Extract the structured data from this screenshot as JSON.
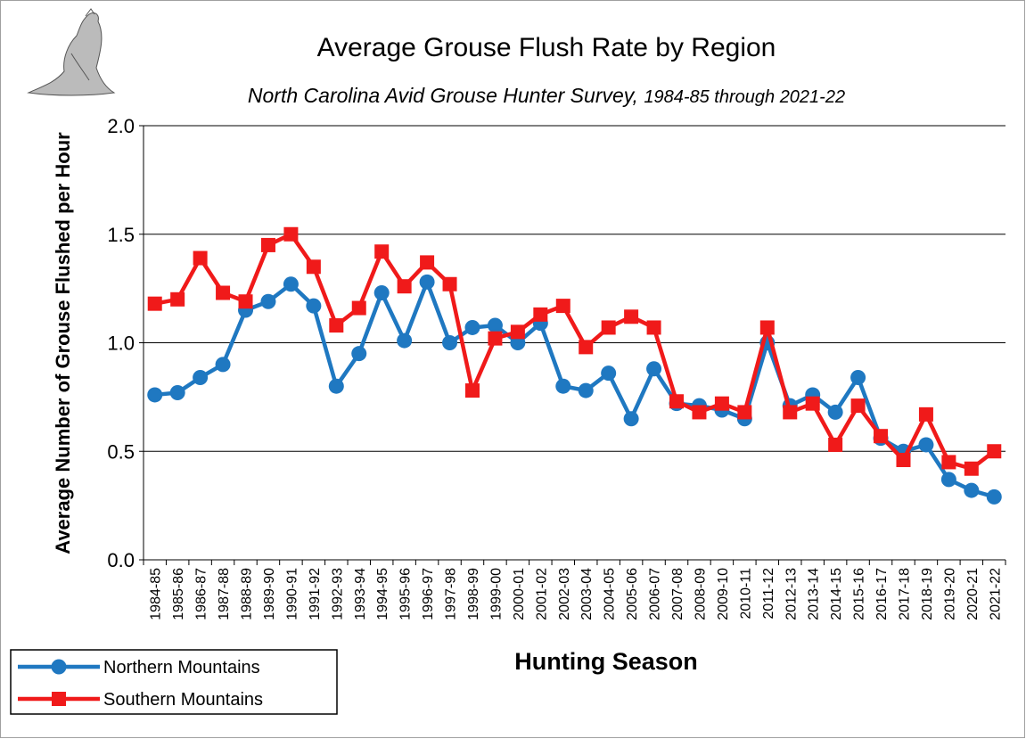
{
  "chart_data": {
    "type": "line",
    "title": "Average Grouse Flush Rate by Region",
    "subtitle": [
      "North Carolina Avid Grouse Hunter Survey,",
      "1984-85 through 2021-22"
    ],
    "x_label": "Hunting Season",
    "y_label": "Average Number of Grouse Flushed per Hour",
    "categories": [
      "1984-85",
      "1985-86",
      "1986-87",
      "1987-88",
      "1988-89",
      "1989-90",
      "1990-91",
      "1991-92",
      "1992-93",
      "1993-94",
      "1994-95",
      "1995-96",
      "1996-97",
      "1997-98",
      "1998-99",
      "1999-00",
      "2000-01",
      "2001-02",
      "2002-03",
      "2003-04",
      "2004-05",
      "2005-06",
      "2006-07",
      "2007-08",
      "2008-09",
      "2009-10",
      "2010-11",
      "2011-12",
      "2012-13",
      "2013-14",
      "2014-15",
      "2015-16",
      "2016-17",
      "2017-18",
      "2018-19",
      "2019-20",
      "2020-21",
      "2021-22"
    ],
    "series": [
      {
        "name": "Northern Mountains",
        "color": "#1f78c1",
        "marker": "circle",
        "values": [
          0.76,
          0.77,
          0.84,
          0.9,
          1.15,
          1.19,
          1.27,
          1.17,
          0.8,
          0.95,
          1.23,
          1.01,
          1.28,
          1.0,
          1.07,
          1.08,
          1.0,
          1.09,
          0.8,
          0.78,
          0.86,
          0.65,
          0.88,
          0.72,
          0.71,
          0.69,
          0.65,
          1.0,
          0.71,
          0.76,
          0.68,
          0.84,
          0.56,
          0.5,
          0.53,
          0.37,
          0.32,
          0.29
        ]
      },
      {
        "name": "Southern Mountains",
        "color": "#f01a1a",
        "marker": "square",
        "values": [
          1.18,
          1.2,
          1.39,
          1.23,
          1.19,
          1.45,
          1.5,
          1.35,
          1.08,
          1.16,
          1.42,
          1.26,
          1.37,
          1.27,
          0.78,
          1.02,
          1.05,
          1.13,
          1.17,
          0.98,
          1.07,
          1.12,
          1.07,
          0.73,
          0.68,
          0.72,
          0.68,
          1.07,
          0.68,
          0.72,
          0.53,
          0.71,
          0.57,
          0.46,
          0.67,
          0.45,
          0.42,
          0.5
        ]
      }
    ],
    "ylim": [
      0,
      2
    ],
    "yticks": [
      {
        "value": 0,
        "label": "0.0"
      },
      {
        "value": 0.5,
        "label": "0.5"
      },
      {
        "value": 1,
        "label": "1.0"
      },
      {
        "value": 1.5,
        "label": "1.5"
      },
      {
        "value": 2,
        "label": "2.0"
      }
    ],
    "grid": true,
    "legend": "bottom-left"
  }
}
